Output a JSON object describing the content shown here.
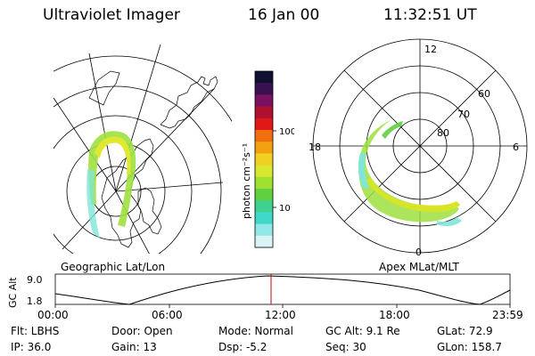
{
  "header": {
    "title": "Ultraviolet Imager",
    "date": "16 Jan 00",
    "time": "11:32:51 UT"
  },
  "colorbar": {
    "ticks": [
      "100",
      "10"
    ],
    "units": "photon cm⁻²s⁻¹",
    "colors": [
      "#101030",
      "#3a1050",
      "#7a1060",
      "#b01030",
      "#e01818",
      "#f07010",
      "#f0a010",
      "#f0d020",
      "#d8e830",
      "#a0e030",
      "#60d040",
      "#40d090",
      "#40d8c8",
      "#90e8e8",
      "#d8f4f4"
    ]
  },
  "maps": {
    "left_label": "Geographic Lat/Lon",
    "right_label": "Apex MLat/MLT",
    "polar_mlt_labels": {
      "top": "12",
      "left": "18",
      "right": "6",
      "bottom": "0"
    },
    "polar_lat_labels": [
      "60",
      "70",
      "80"
    ]
  },
  "altitude_plot": {
    "ylabel": "GC Alt",
    "yticks": [
      "9.0",
      "1.8"
    ],
    "xticks": [
      "00:00",
      "06:00",
      "12:00",
      "18:00",
      "23:59"
    ]
  },
  "info": {
    "flt": "Flt: LBHS",
    "ip": "IP: 36.0",
    "door": "Door: Open",
    "gain": "Gain: 13",
    "mode": "Mode: Normal",
    "dsp": "Dsp:   -5.2",
    "gcalt": "GC Alt: 9.1 Re",
    "seq": "Seq: 30",
    "glat": "GLat:  72.9",
    "glon": "GLon: 158.7"
  }
}
